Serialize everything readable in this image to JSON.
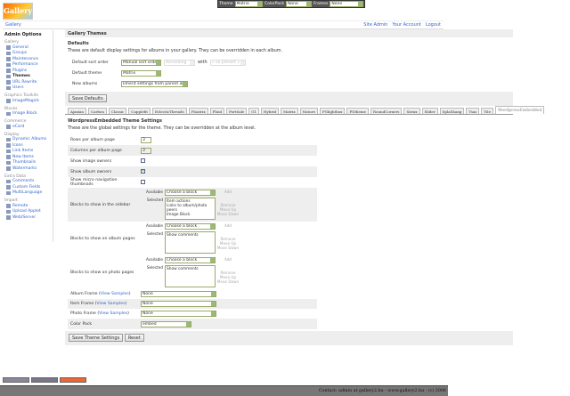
{
  "topbar": {
    "theme_label": "Theme",
    "theme_value": "Matrix",
    "colorpack_label": "ColorPack",
    "colorpack_value": "None",
    "frames_label": "Frames",
    "frames_value": "None"
  },
  "logo": {
    "text": "Gallery"
  },
  "breadcrumb": "Gallery",
  "header_links": [
    "Site Admin",
    "Your Account",
    "Logout"
  ],
  "sidebar": {
    "title": "Admin Options",
    "groups": [
      {
        "label": "Gallery",
        "items": [
          "General",
          "Groups",
          "Maintenance",
          "Performance",
          "Plugins",
          "Themes",
          "URL Rewrite",
          "Users"
        ]
      },
      {
        "label": "Graphics Toolkits",
        "items": [
          "ImageMagick"
        ]
      },
      {
        "label": "Blocks",
        "items": [
          "Image Block"
        ]
      },
      {
        "label": "Commerce",
        "items": [
          "eCard"
        ]
      },
      {
        "label": "Display",
        "items": [
          "Dynamic Albums",
          "Icons",
          "Link Items",
          "New Items",
          "Thumbnails",
          "Watermarks"
        ]
      },
      {
        "label": "Extra Data",
        "items": [
          "Comments",
          "Custom Fields",
          "MultiLanguage"
        ]
      },
      {
        "label": "Import",
        "items": [
          "Remote",
          "Upload Applet",
          "Web/Server"
        ]
      }
    ],
    "current": "Themes"
  },
  "main": {
    "title": "Gallery Themes",
    "defaults": {
      "heading": "Defaults",
      "description": "These are default display settings for albums in your gallery. They can be overridden in each album.",
      "sort_label": "Default sort order",
      "sort_value": "Manual sort order",
      "sort_dir": "Ascending",
      "with_label": "with",
      "presort": "« no presort »",
      "theme_label": "Default theme",
      "theme_value": "Matrix",
      "new_label": "New albums",
      "new_value": "Inherit settings from parent album",
      "save": "Save Defaults"
    },
    "tabs": [
      "Ajaxian",
      "Carbon",
      "Classic",
      "Cupplefit",
      "EclecticThreads",
      "Floatrix",
      "Fluid",
      "PortSale",
      "G1",
      "Hybrid",
      "Matrix",
      "Nature",
      "PGlightbox",
      "PGtheme",
      "RoundCorners",
      "Siriux",
      "Slider",
      "SplaShang",
      "Tsas",
      "Tile",
      "WordpressEmbedded"
    ],
    "active_tab": "WordpressEmbedded",
    "settings": {
      "heading": "WordpressEmbedded Theme Settings",
      "description": "These are the global settings for the theme. They can be overridden at the album level.",
      "rows_label": "Rows per album page",
      "rows": "3",
      "cols_label": "Columns per album page",
      "cols": "3",
      "img_owners_label": "Show image owners",
      "img_owners": false,
      "album_owners_label": "Show album owners",
      "album_owners": true,
      "micro_label": "Show micro navigation thumbnails",
      "micro": false,
      "available_label": "Available",
      "selected_label": "Selected",
      "choose": "Choose a block",
      "add": "Add",
      "remove": "Remove",
      "move_up": "Move Up",
      "move_down": "Move Down",
      "blocks": [
        {
          "label": "Blocks to show in the sidebar",
          "selected": [
            "Item actions",
            "Links to album/photo peers",
            "Image Block"
          ]
        },
        {
          "label": "Blocks to show on album pages",
          "selected": [
            "Show comments"
          ]
        },
        {
          "label": "Blocks to show on photo pages",
          "selected": [
            "Show comments"
          ]
        }
      ],
      "view_samples": "View Samples",
      "album_frame_label": "Album Frame",
      "album_frame": "None",
      "item_frame_label": "Item Frame",
      "item_frame": "None",
      "photo_frame_label": "Photo Frame",
      "photo_frame": "None",
      "color_pack_label": "Color Pack",
      "color_pack": "embed",
      "save": "Save Theme Settings",
      "reset": "Reset"
    }
  },
  "footer": "Contact: admin at gallery2.hu - www.gallery2.hu - (c) 2006"
}
